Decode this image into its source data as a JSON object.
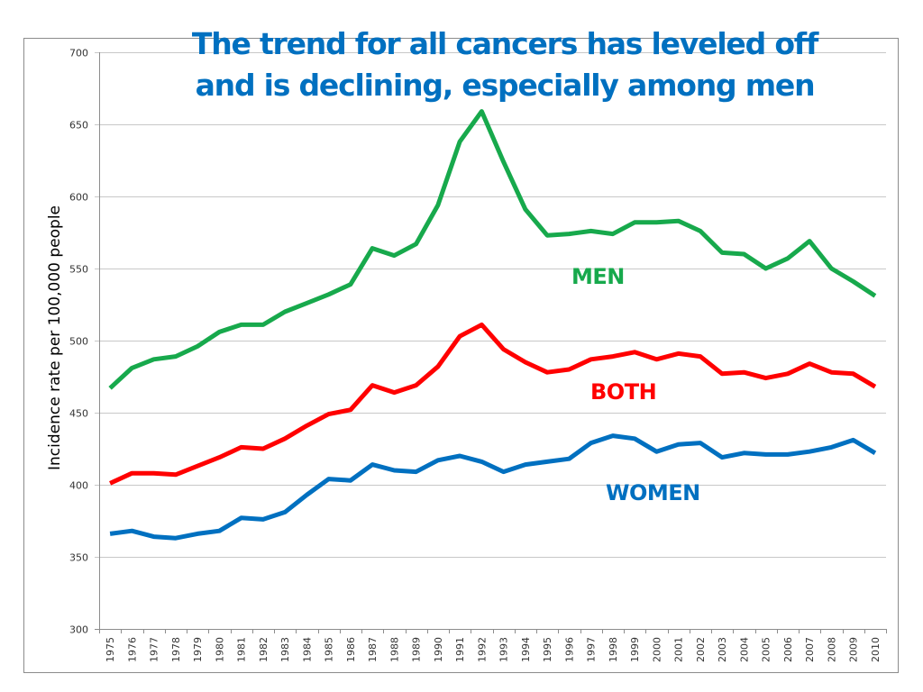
{
  "chart_data": {
    "type": "line",
    "title": "The trend for all cancers has leveled off and is declining, especially among men",
    "title_lines": [
      "The trend for all cancers has leveled off",
      "and is declining, especially among men"
    ],
    "xlabel": "",
    "ylabel": "Incidence rate per 100,000 people",
    "ylim": [
      300,
      700
    ],
    "y_ticks": [
      300,
      350,
      400,
      450,
      500,
      550,
      600,
      650,
      700
    ],
    "grid": true,
    "legend": "inline-labels",
    "categories": [
      "1975",
      "1976",
      "1977",
      "1978",
      "1979",
      "1980",
      "1981",
      "1982",
      "1983",
      "1984",
      "1985",
      "1986",
      "1987",
      "1988",
      "1989",
      "1990",
      "1991",
      "1992",
      "1993",
      "1994",
      "1995",
      "1996",
      "1997",
      "1998",
      "1999",
      "2000",
      "2001",
      "2002",
      "2003",
      "2004",
      "2005",
      "2006",
      "2007",
      "2008",
      "2009",
      "2010"
    ],
    "series": [
      {
        "name": "MEN",
        "color": "#17a94c",
        "values": [
          467,
          481,
          487,
          489,
          496,
          506,
          511,
          511,
          520,
          526,
          532,
          539,
          564,
          559,
          567,
          594,
          638,
          659,
          624,
          591,
          573,
          574,
          576,
          574,
          582,
          582,
          583,
          576,
          561,
          560,
          550,
          557,
          569,
          550,
          541,
          531
        ]
      },
      {
        "name": "BOTH",
        "color": "#ff0000",
        "values": [
          401,
          408,
          408,
          407,
          413,
          419,
          426,
          425,
          432,
          441,
          449,
          452,
          469,
          464,
          469,
          482,
          503,
          511,
          494,
          485,
          478,
          480,
          487,
          489,
          492,
          487,
          491,
          489,
          477,
          478,
          474,
          477,
          484,
          478,
          477,
          468
        ]
      },
      {
        "name": "WOMEN",
        "color": "#0070c0",
        "values": [
          366,
          368,
          364,
          363,
          366,
          368,
          377,
          376,
          381,
          393,
          404,
          403,
          414,
          410,
          409,
          417,
          420,
          416,
          409,
          414,
          416,
          418,
          429,
          434,
          432,
          423,
          428,
          429,
          419,
          422,
          421,
          421,
          423,
          426,
          431,
          422
        ]
      }
    ]
  },
  "title_color": "#0070c0"
}
